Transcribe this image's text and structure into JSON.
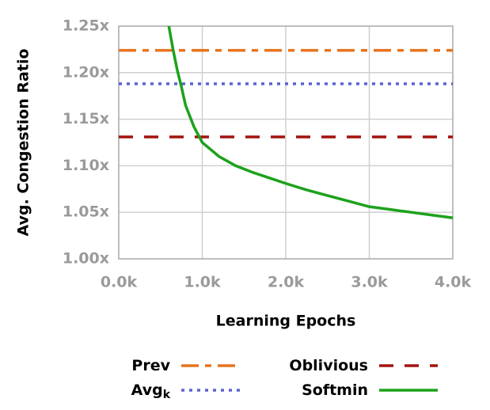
{
  "chart_data": {
    "type": "line",
    "ylabel": "Avg. Congestion Ratio",
    "xlabel": "Learning Epochs",
    "xlim": [
      0,
      4000
    ],
    "xticks": [
      {
        "value": 0,
        "label": "0.0k"
      },
      {
        "value": 1000,
        "label": "1.0k"
      },
      {
        "value": 2000,
        "label": "2.0k"
      },
      {
        "value": 3000,
        "label": "3.0k"
      },
      {
        "value": 4000,
        "label": "4.0k"
      }
    ],
    "ylim": [
      1.0,
      1.25
    ],
    "yticks": [
      {
        "value": 1.0,
        "label": "1.00x"
      },
      {
        "value": 1.05,
        "label": "1.05x"
      },
      {
        "value": 1.1,
        "label": "1.10x"
      },
      {
        "value": 1.15,
        "label": "1.15x"
      },
      {
        "value": 1.2,
        "label": "1.20x"
      },
      {
        "value": 1.25,
        "label": "1.25x"
      }
    ],
    "grid": true,
    "legend": "bottom",
    "series": [
      {
        "name": "Prev",
        "color": "#e8731c",
        "dash": "dashdot",
        "x": [
          0,
          4000
        ],
        "values": [
          1.224,
          1.224
        ]
      },
      {
        "name": "Avg",
        "subscript": "k",
        "color": "#5a63d2",
        "dash": "dotted",
        "x": [
          0,
          4000
        ],
        "values": [
          1.188,
          1.188
        ]
      },
      {
        "name": "Oblivious",
        "color": "#a3120f",
        "dash": "dashed",
        "x": [
          0,
          4000
        ],
        "values": [
          1.131,
          1.131
        ]
      },
      {
        "name": "Softmin",
        "color": "#1ca21c",
        "dash": "solid",
        "x": [
          600,
          650,
          700,
          750,
          800,
          900,
          1000,
          1200,
          1400,
          1600,
          1800,
          2000,
          2250,
          2500,
          2750,
          3000,
          3250,
          3500,
          3750,
          4000
        ],
        "values": [
          1.25,
          1.225,
          1.203,
          1.185,
          1.165,
          1.142,
          1.125,
          1.11,
          1.1,
          1.093,
          1.087,
          1.081,
          1.074,
          1.068,
          1.062,
          1.056,
          1.053,
          1.05,
          1.047,
          1.044
        ]
      }
    ]
  }
}
